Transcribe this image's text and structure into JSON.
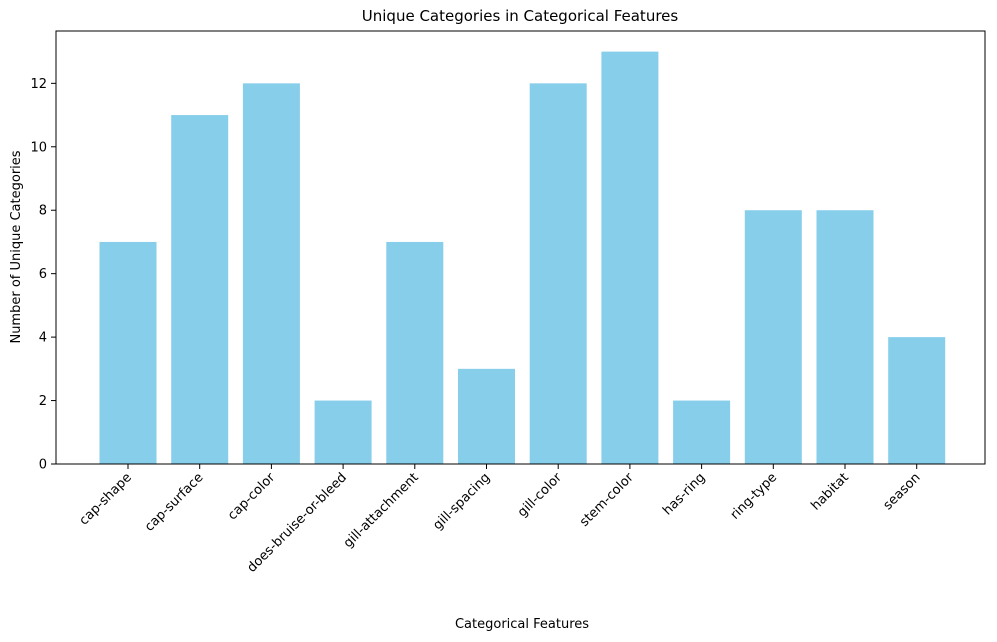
{
  "chart_data": {
    "type": "bar",
    "title": "Unique Categories in Categorical Features",
    "xlabel": "Categorical Features",
    "ylabel": "Number of Unique Categories",
    "categories": [
      "cap-shape",
      "cap-surface",
      "cap-color",
      "does-bruise-or-bleed",
      "gill-attachment",
      "gill-spacing",
      "gill-color",
      "stem-color",
      "has-ring",
      "ring-type",
      "habitat",
      "season"
    ],
    "values": [
      7,
      11,
      12,
      2,
      7,
      3,
      12,
      13,
      2,
      8,
      8,
      4
    ],
    "ylim": [
      0,
      13.65
    ],
    "yticks": [
      0,
      2,
      4,
      6,
      8,
      10,
      12
    ],
    "bar_color": "#87ceeb",
    "grid": false,
    "legend": "none"
  }
}
